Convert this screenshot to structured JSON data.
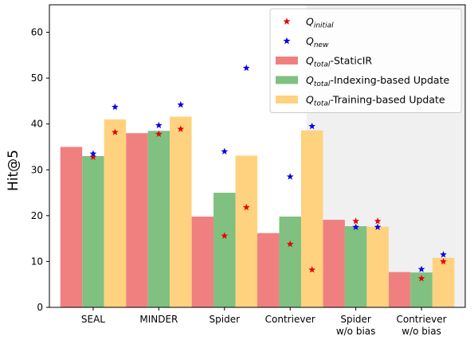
{
  "chart_data": {
    "type": "bar",
    "ylabel": "Hit@5",
    "ylim": [
      0,
      66
    ],
    "yticks": [
      0,
      10,
      20,
      30,
      40,
      50,
      60
    ],
    "categories": [
      {
        "line1": "SEAL",
        "line2": ""
      },
      {
        "line1": "MINDER",
        "line2": ""
      },
      {
        "line1": "Spider",
        "line2": ""
      },
      {
        "line1": "Contriever",
        "line2": ""
      },
      {
        "line1": "Spider",
        "line2": "w/o bias"
      },
      {
        "line1": "Contriever",
        "line2": "w/o bias"
      }
    ],
    "shaded_categories": [
      4,
      5
    ],
    "colors": {
      "bar_static": "#f08080",
      "bar_indexing": "#80c080",
      "bar_training": "#ffd27f",
      "marker_initial": "#e60000",
      "marker_new": "#0000e6",
      "shade": "#f0f0f0"
    },
    "bar_series": [
      {
        "key": "static",
        "name": "-StaticIR",
        "values": [
          35.0,
          38.0,
          19.8,
          16.2,
          19.1,
          7.7
        ]
      },
      {
        "key": "indexing",
        "name": "-Indexing-based Update",
        "values": [
          33.0,
          38.5,
          25.0,
          19.8,
          17.7,
          7.6
        ]
      },
      {
        "key": "training",
        "name": "-Training-based Update",
        "values": [
          41.0,
          41.6,
          33.1,
          38.6,
          17.6,
          10.8
        ]
      }
    ],
    "marker_series": [
      {
        "key": "initial",
        "name": "initial",
        "points": [
          [
            1,
            32.8
          ],
          [
            2,
            38.2
          ],
          [
            4,
            37.8
          ],
          [
            5,
            38.9
          ],
          [
            7,
            15.6
          ],
          [
            8,
            21.8
          ],
          [
            10,
            13.8
          ],
          [
            11,
            8.2
          ],
          [
            13,
            18.8
          ],
          [
            14,
            18.8
          ],
          [
            16,
            6.3
          ],
          [
            17,
            10.0
          ]
        ]
      },
      {
        "key": "new",
        "name": "new",
        "points": [
          [
            1,
            33.5
          ],
          [
            2,
            43.7
          ],
          [
            4,
            39.7
          ],
          [
            5,
            44.2
          ],
          [
            7,
            34.0
          ],
          [
            8,
            52.2
          ],
          [
            10,
            28.5
          ],
          [
            11,
            39.5
          ],
          [
            13,
            17.5
          ],
          [
            14,
            17.5
          ],
          [
            16,
            8.3
          ],
          [
            17,
            11.5
          ]
        ]
      }
    ],
    "legend": {
      "placement": "top-right",
      "symbol": "Q",
      "total_subscript": "total",
      "entries": [
        {
          "kind": "marker",
          "series": "initial",
          "subscript": "initial",
          "suffix": ""
        },
        {
          "kind": "marker",
          "series": "new",
          "subscript": "new",
          "suffix": ""
        },
        {
          "kind": "bar",
          "series": "static",
          "subscript": "total",
          "suffix": "-StaticIR"
        },
        {
          "kind": "bar",
          "series": "indexing",
          "subscript": "total",
          "suffix": "-Indexing-based Update"
        },
        {
          "kind": "bar",
          "series": "training",
          "subscript": "total",
          "suffix": "-Training-based Update"
        }
      ]
    }
  }
}
